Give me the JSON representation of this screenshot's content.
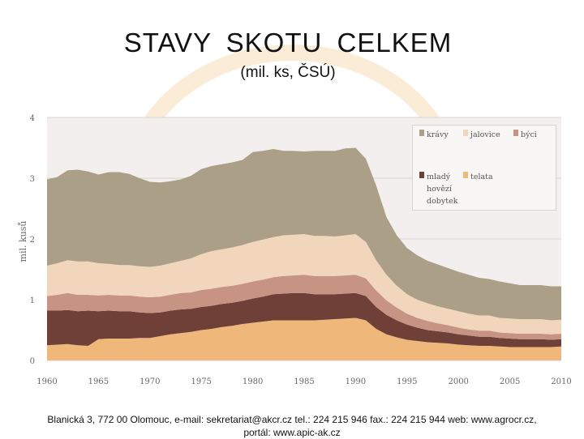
{
  "header": {
    "title": "STAVY  SKOTU  CELKEM",
    "subtitle": "(mil. ks, ČSÚ)"
  },
  "footer": {
    "line1": "Blanická 3, 772 00 Olomouc, e-mail: sekretariat@akcr.cz tel.: 224 215 946 fax.: 224 215 944 web: www.agrocr.cz,",
    "line2": "portál: www.apic-ak.cz"
  },
  "chart_data": {
    "type": "area",
    "stacked": true,
    "title": "STAVY  SKOTU  CELKEM",
    "ylabel": "mil. kusů",
    "xlabel": "",
    "xlim": [
      1960,
      2010
    ],
    "ylim": [
      0,
      4
    ],
    "grid": true,
    "legend_position": "top-right",
    "x_ticks": [
      "1960",
      "1965",
      "1970",
      "1975",
      "1980",
      "1985",
      "1990",
      "1995",
      "2000",
      "2005",
      "2010"
    ],
    "y_ticks": [
      "0",
      "1",
      "2",
      "3",
      "4"
    ],
    "x": [
      1960,
      1961,
      1962,
      1963,
      1964,
      1965,
      1966,
      1967,
      1968,
      1969,
      1970,
      1971,
      1972,
      1973,
      1974,
      1975,
      1976,
      1977,
      1978,
      1979,
      1980,
      1981,
      1982,
      1983,
      1984,
      1985,
      1986,
      1987,
      1988,
      1989,
      1990,
      1991,
      1992,
      1993,
      1994,
      1995,
      1996,
      1997,
      1998,
      1999,
      2000,
      2001,
      2002,
      2003,
      2004,
      2005,
      2006,
      2007,
      2008,
      2009,
      2010
    ],
    "series": [
      {
        "name": "telata",
        "color": "#f0b77a",
        "values": [
          0.25,
          0.26,
          0.27,
          0.25,
          0.24,
          0.35,
          0.36,
          0.36,
          0.36,
          0.37,
          0.37,
          0.4,
          0.43,
          0.45,
          0.47,
          0.5,
          0.52,
          0.55,
          0.57,
          0.6,
          0.62,
          0.64,
          0.66,
          0.66,
          0.66,
          0.66,
          0.66,
          0.67,
          0.68,
          0.69,
          0.7,
          0.66,
          0.52,
          0.43,
          0.38,
          0.34,
          0.32,
          0.3,
          0.29,
          0.28,
          0.26,
          0.25,
          0.24,
          0.24,
          0.23,
          0.22,
          0.22,
          0.22,
          0.22,
          0.22,
          0.23
        ]
      },
      {
        "name": "mladý hovězí dobytek",
        "color": "#6e4038",
        "values": [
          0.57,
          0.56,
          0.56,
          0.56,
          0.58,
          0.46,
          0.46,
          0.45,
          0.45,
          0.42,
          0.41,
          0.39,
          0.39,
          0.39,
          0.38,
          0.38,
          0.38,
          0.38,
          0.38,
          0.38,
          0.4,
          0.41,
          0.43,
          0.44,
          0.45,
          0.45,
          0.43,
          0.42,
          0.41,
          0.41,
          0.41,
          0.4,
          0.36,
          0.32,
          0.28,
          0.25,
          0.22,
          0.2,
          0.19,
          0.18,
          0.17,
          0.16,
          0.15,
          0.15,
          0.14,
          0.14,
          0.13,
          0.13,
          0.13,
          0.12,
          0.12
        ]
      },
      {
        "name": "býci",
        "color": "#c79484",
        "values": [
          0.24,
          0.26,
          0.28,
          0.27,
          0.26,
          0.26,
          0.26,
          0.26,
          0.26,
          0.26,
          0.26,
          0.26,
          0.26,
          0.27,
          0.27,
          0.28,
          0.28,
          0.28,
          0.28,
          0.28,
          0.28,
          0.28,
          0.28,
          0.29,
          0.29,
          0.3,
          0.3,
          0.3,
          0.3,
          0.3,
          0.3,
          0.29,
          0.27,
          0.24,
          0.21,
          0.18,
          0.16,
          0.15,
          0.13,
          0.12,
          0.11,
          0.1,
          0.1,
          0.1,
          0.09,
          0.09,
          0.09,
          0.09,
          0.09,
          0.09,
          0.09
        ]
      },
      {
        "name": "jalovice",
        "color": "#f1d6bc",
        "values": [
          0.5,
          0.52,
          0.54,
          0.55,
          0.55,
          0.53,
          0.51,
          0.5,
          0.5,
          0.5,
          0.5,
          0.51,
          0.52,
          0.53,
          0.56,
          0.59,
          0.62,
          0.62,
          0.63,
          0.64,
          0.65,
          0.66,
          0.66,
          0.67,
          0.67,
          0.67,
          0.66,
          0.66,
          0.65,
          0.66,
          0.67,
          0.6,
          0.5,
          0.42,
          0.36,
          0.32,
          0.3,
          0.29,
          0.28,
          0.27,
          0.27,
          0.26,
          0.25,
          0.25,
          0.24,
          0.24,
          0.24,
          0.24,
          0.24,
          0.23,
          0.23
        ]
      },
      {
        "name": "krávy",
        "color": "#aba087",
        "values": [
          1.42,
          1.42,
          1.48,
          1.51,
          1.48,
          1.46,
          1.51,
          1.53,
          1.5,
          1.45,
          1.4,
          1.37,
          1.35,
          1.34,
          1.36,
          1.4,
          1.4,
          1.4,
          1.4,
          1.4,
          1.48,
          1.46,
          1.45,
          1.39,
          1.38,
          1.36,
          1.4,
          1.4,
          1.41,
          1.43,
          1.42,
          1.37,
          1.23,
          0.95,
          0.83,
          0.76,
          0.73,
          0.7,
          0.69,
          0.67,
          0.65,
          0.64,
          0.62,
          0.6,
          0.6,
          0.58,
          0.56,
          0.56,
          0.56,
          0.56,
          0.55
        ]
      }
    ],
    "legend_order": [
      "krávy",
      "jalovice",
      "býci",
      "mladý hovězí dobytek",
      "telata"
    ]
  }
}
